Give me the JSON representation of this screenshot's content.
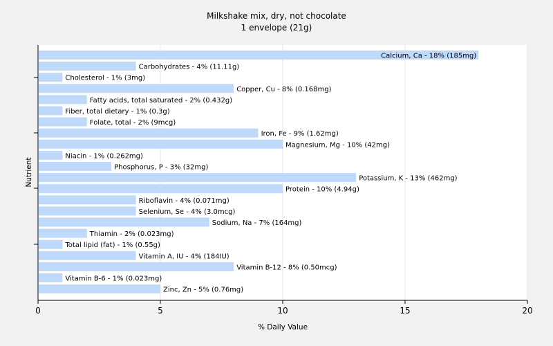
{
  "chart_data": {
    "type": "bar",
    "orientation": "horizontal",
    "title": "Milkshake mix, dry, not chocolate",
    "subtitle": "1 envelope (21g)",
    "xlabel": "% Daily Value",
    "ylabel": "Nutrient",
    "xlim": [
      0,
      20
    ],
    "xticks": [
      "0",
      "5",
      "10",
      "15",
      "20"
    ],
    "grid": true,
    "bar_color": "#bfd9fb",
    "background_color": "#f2f2f2",
    "plot_background": "#ffffff",
    "categories": [
      "Calcium, Ca",
      "Carbohydrates",
      "Cholesterol",
      "Copper, Cu",
      "Fatty acids, total saturated",
      "Fiber, total dietary",
      "Folate, total",
      "Iron, Fe",
      "Magnesium, Mg",
      "Niacin",
      "Phosphorus, P",
      "Potassium, K",
      "Protein",
      "Riboflavin",
      "Selenium, Se",
      "Sodium, Na",
      "Thiamin",
      "Total lipid (fat)",
      "Vitamin A, IU",
      "Vitamin B-12",
      "Vitamin B-6",
      "Zinc, Zn"
    ],
    "values": [
      18,
      4,
      1,
      8,
      2,
      1,
      2,
      9,
      10,
      1,
      3,
      13,
      10,
      4,
      4,
      7,
      2,
      1,
      4,
      8,
      1,
      5
    ],
    "labels": [
      "Calcium, Ca - 18% (185mg)",
      "Carbohydrates - 4% (11.11g)",
      "Cholesterol - 1% (3mg)",
      "Copper, Cu - 8% (0.168mg)",
      "Fatty acids, total saturated - 2% (0.432g)",
      "Fiber, total dietary - 1% (0.3g)",
      "Folate, total - 2% (9mcg)",
      "Iron, Fe - 9% (1.62mg)",
      "Magnesium, Mg - 10% (42mg)",
      "Niacin - 1% (0.262mg)",
      "Phosphorus, P - 3% (32mg)",
      "Potassium, K - 13% (462mg)",
      "Protein - 10% (4.94g)",
      "Riboflavin - 4% (0.071mg)",
      "Selenium, Se - 4% (3.0mcg)",
      "Sodium, Na - 7% (164mg)",
      "Thiamin - 2% (0.023mg)",
      "Total lipid (fat) - 1% (0.55g)",
      "Vitamin A, IU - 4% (184IU)",
      "Vitamin B-12 - 8% (0.50mcg)",
      "Vitamin B-6 - 1% (0.023mg)",
      "Zinc, Zn - 5% (0.76mg)"
    ]
  }
}
